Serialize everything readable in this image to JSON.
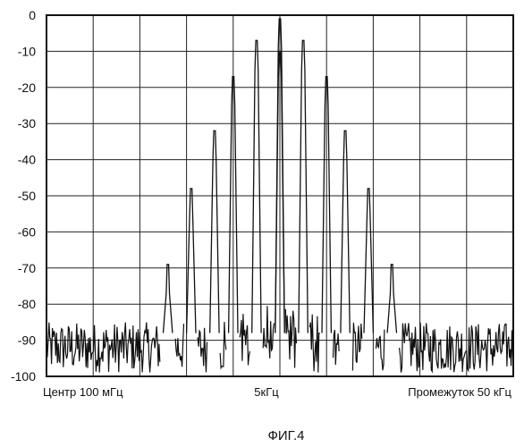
{
  "figure": {
    "caption": "ФИГ.4"
  },
  "chart_data": {
    "type": "line",
    "title": "",
    "xlabel": "",
    "ylabel": "",
    "x_axis_labels": {
      "left": "Центр 100 мГц",
      "center": "5кГц",
      "right": "Промежуток 50 кГц"
    },
    "x_unit": "kHz offset from center",
    "xlim": [
      -25,
      25
    ],
    "ylim": [
      -100,
      0
    ],
    "y_ticks": [
      0,
      -10,
      -20,
      -30,
      -40,
      -50,
      -60,
      -70,
      -80,
      -90,
      -100
    ],
    "y_tick_labels": [
      "0",
      "-10",
      "-20",
      "-30",
      "-40",
      "-50",
      "-60",
      "-70",
      "-80",
      "-90",
      "-100"
    ],
    "grid": true,
    "grid_divisions_x": 10,
    "grid_divisions_y": 10,
    "noise_floor": -92,
    "series": [
      {
        "line_color": "#111111",
        "peaks": [
          {
            "x": -12,
            "y": -69
          },
          {
            "x": -9.5,
            "y": -48
          },
          {
            "x": -7,
            "y": -32
          },
          {
            "x": -5,
            "y": -17
          },
          {
            "x": -2.5,
            "y": -7
          },
          {
            "x": 0,
            "y": -1
          },
          {
            "x": 0,
            "y": -10
          },
          {
            "x": 2.5,
            "y": -7
          },
          {
            "x": 5,
            "y": -17
          },
          {
            "x": 7,
            "y": -32
          },
          {
            "x": 9.5,
            "y": -48
          },
          {
            "x": 12,
            "y": -69
          }
        ]
      }
    ]
  }
}
